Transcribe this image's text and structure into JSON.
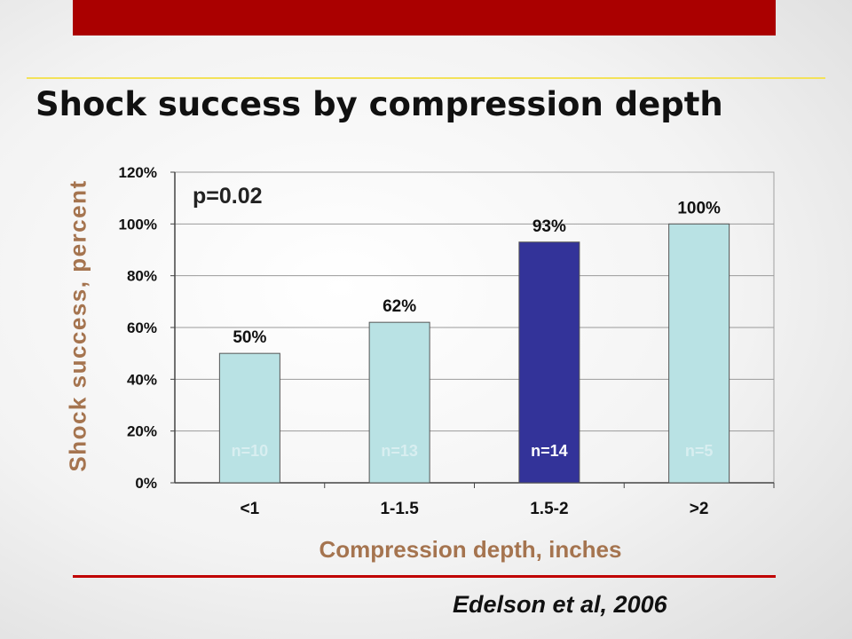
{
  "header": {
    "title": "Shock success by compression depth",
    "citation": "Edelson et al, 2006"
  },
  "colors": {
    "top_band": "#aa0000",
    "gold_rule": "#f3e25a",
    "red_rule": "#c00000",
    "bar_default": "#b9e2e4",
    "bar_highlight": "#333399",
    "axis_title": "#a5744f"
  },
  "chart_data": {
    "type": "bar",
    "title": "",
    "xlabel": "Compression depth, inches",
    "ylabel": "Shock success, percent",
    "categories": [
      "<1",
      "1-1.5",
      "1.5-2",
      ">2"
    ],
    "values": [
      50,
      62,
      93,
      100
    ],
    "value_labels": [
      "50%",
      "62%",
      "93%",
      "100%"
    ],
    "n_labels": [
      "n=10",
      "n=13",
      "n=14",
      "n=5"
    ],
    "highlight_index": 2,
    "ylim": [
      0,
      120
    ],
    "yticks": [
      0,
      20,
      40,
      60,
      80,
      100,
      120
    ],
    "ytick_labels": [
      "0%",
      "20%",
      "40%",
      "60%",
      "80%",
      "100%",
      "120%"
    ],
    "grid": true,
    "annotation": "p=0.02"
  }
}
